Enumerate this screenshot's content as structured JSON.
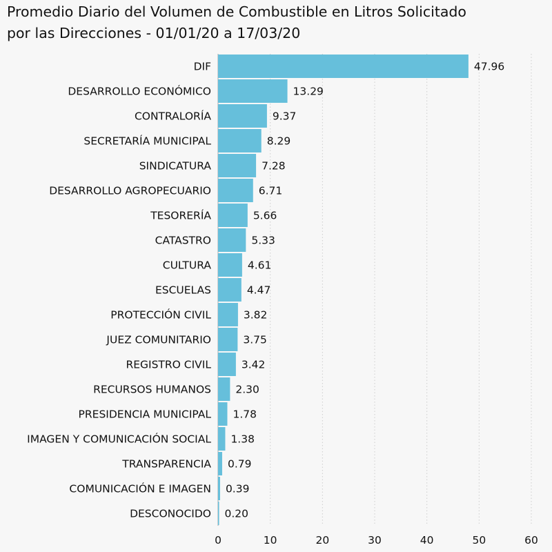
{
  "chart_data": {
    "type": "bar",
    "orientation": "horizontal",
    "title_lines": [
      "Promedio Diario del Volumen de Combustible en Litros Solicitado",
      "por las Direcciones - 01/01/20 a 17/03/20"
    ],
    "categories": [
      "DIF",
      "DESARROLLO ECONÓMICO",
      "CONTRALORÍA",
      "SECRETARÍA MUNICIPAL",
      "SINDICATURA",
      "DESARROLLO AGROPECUARIO",
      "TESORERÍA",
      "CATASTRO",
      "CULTURA",
      "ESCUELAS",
      "PROTECCIÓN CIVIL",
      "JUEZ COMUNITARIO",
      "REGISTRO CIVIL",
      "RECURSOS HUMANOS",
      "PRESIDENCIA MUNICIPAL",
      "IMAGEN Y COMUNICACIÓN SOCIAL",
      "TRANSPARENCIA",
      "COMUNICACIÓN E IMAGEN",
      "DESCONOCIDO"
    ],
    "values": [
      47.96,
      13.29,
      9.37,
      8.29,
      7.28,
      6.71,
      5.66,
      5.33,
      4.61,
      4.47,
      3.82,
      3.75,
      3.42,
      2.3,
      1.78,
      1.38,
      0.79,
      0.39,
      0.2
    ],
    "value_labels": [
      "47.96",
      "13.29",
      "9.37",
      "8.29",
      "7.28",
      "6.71",
      "5.66",
      "5.33",
      "4.61",
      "4.47",
      "3.82",
      "3.75",
      "3.42",
      "2.30",
      "1.78",
      "1.38",
      "0.79",
      "0.39",
      "0.20"
    ],
    "xlim": [
      0,
      60
    ],
    "xticks": [
      0,
      10,
      20,
      30,
      40,
      50,
      60
    ],
    "grid": "vertical-dotted",
    "bar_color": "#66bfdb",
    "background_color": "#f7f7f7"
  }
}
